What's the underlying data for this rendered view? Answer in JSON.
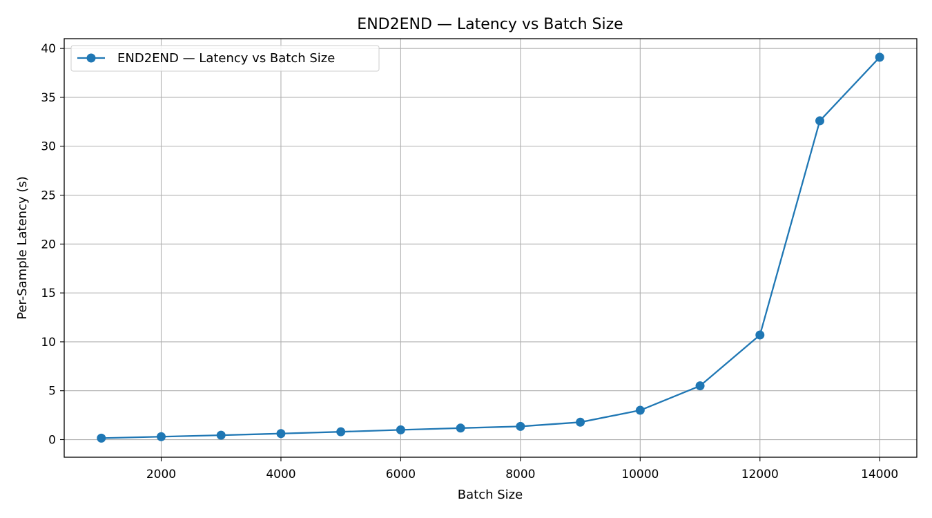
{
  "chart_data": {
    "type": "line",
    "title": "END2END —  Latency vs Batch Size",
    "xlabel": "Batch Size",
    "ylabel": "Per-Sample Latency (s)",
    "x": [
      1000,
      2000,
      3000,
      4000,
      5000,
      6000,
      7000,
      8000,
      9000,
      10000,
      11000,
      12000,
      13000,
      14000
    ],
    "series": [
      {
        "name": "END2END —  Latency vs Batch Size",
        "values": [
          0.15,
          0.3,
          0.45,
          0.62,
          0.8,
          1.0,
          1.18,
          1.35,
          1.78,
          3.0,
          5.5,
          10.7,
          32.6,
          39.1
        ],
        "color": "#1f77b4",
        "marker": "circle"
      }
    ],
    "xlim": [
      380,
      14620
    ],
    "ylim": [
      -1.8,
      41.0
    ],
    "xticks": [
      2000,
      4000,
      6000,
      8000,
      10000,
      12000,
      14000
    ],
    "yticks": [
      0,
      5,
      10,
      15,
      20,
      25,
      30,
      35,
      40
    ],
    "grid": true,
    "legend_position": "top-left"
  }
}
